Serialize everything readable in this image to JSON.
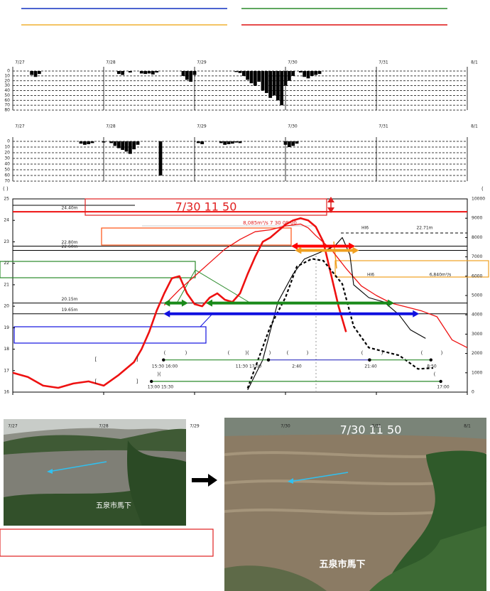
{
  "chart_data": [
    {
      "type": "bar",
      "inverted": true,
      "color": "#000000",
      "x": [
        5,
        6,
        7,
        28,
        29,
        31,
        34,
        35,
        36,
        37,
        38,
        45,
        46,
        47,
        48,
        59,
        60,
        61,
        62,
        63,
        64,
        65,
        66,
        67,
        68,
        69,
        70,
        71,
        72,
        73,
        74,
        76,
        77,
        78,
        79,
        80,
        81
      ],
      "values": [
        8,
        12,
        6,
        6,
        8,
        3,
        5,
        6,
        5,
        7,
        3,
        10,
        18,
        22,
        8,
        2,
        4,
        10,
        18,
        25,
        30,
        22,
        40,
        45,
        55,
        50,
        60,
        70,
        30,
        20,
        10,
        3,
        12,
        15,
        10,
        8,
        6
      ],
      "xlim": [
        0,
        120
      ],
      "xticks": [
        {
          "value": 0,
          "label": "7/27"
        },
        {
          "value": 24,
          "label": "7/28"
        },
        {
          "value": 48,
          "label": "7/29"
        },
        {
          "value": 72,
          "label": "7/30"
        },
        {
          "value": 96,
          "label": "7/31"
        },
        {
          "value": 120,
          "label": "8/1"
        }
      ],
      "ylim": [
        0,
        80
      ],
      "yticks": [
        0,
        10,
        20,
        30,
        40,
        50,
        60,
        70,
        80
      ],
      "grid": true
    },
    {
      "type": "bar",
      "inverted": true,
      "color": "#000000",
      "x": [
        18,
        19,
        20,
        21,
        24,
        26,
        27,
        28,
        29,
        30,
        31,
        32,
        33,
        39,
        49,
        50,
        55,
        56,
        57,
        58,
        59,
        60,
        72,
        73,
        74,
        75
      ],
      "values": [
        4,
        6,
        5,
        3,
        2,
        3,
        8,
        12,
        15,
        18,
        22,
        14,
        6,
        60,
        3,
        5,
        3,
        6,
        5,
        4,
        2,
        3,
        6,
        10,
        8,
        4
      ],
      "xlim": [
        0,
        120
      ],
      "xticks": [
        {
          "value": 0,
          "label": "7/27"
        },
        {
          "value": 24,
          "label": "7/28"
        },
        {
          "value": 48,
          "label": "7/29"
        },
        {
          "value": 72,
          "label": "7/30"
        },
        {
          "value": 96,
          "label": "7/31"
        },
        {
          "value": 120,
          "label": "8/1"
        }
      ],
      "ylim": [
        0,
        70
      ],
      "yticks": [
        0,
        10,
        20,
        30,
        40,
        50,
        60,
        70
      ],
      "grid": true
    },
    {
      "type": "line",
      "y_label": "( )",
      "y2_label": "(",
      "xlim": [
        0,
        120
      ],
      "xticks": [
        {
          "value": 0,
          "label": "7/27"
        },
        {
          "value": 24,
          "label": "7/28"
        },
        {
          "value": 48,
          "label": "7/29"
        },
        {
          "value": 72,
          "label": "7/30"
        },
        {
          "value": 96,
          "label": "7/31"
        },
        {
          "value": 120,
          "label": "8/1"
        }
      ],
      "ylim": [
        16,
        25
      ],
      "yticks": [
        16,
        17,
        18,
        19,
        20,
        21,
        22,
        23,
        24,
        25
      ],
      "y2lim": [
        0,
        10000
      ],
      "y2ticks": [
        0,
        1000,
        2000,
        3000,
        4000,
        5000,
        6000,
        7000,
        8000,
        9000,
        10000
      ],
      "series": [
        {
          "color": "#ee1111",
          "width": 2.6,
          "x": [
            0,
            4,
            8,
            12,
            16,
            20,
            24,
            28,
            32,
            34,
            36,
            38,
            40,
            42,
            44,
            46,
            48,
            50,
            52,
            54,
            56,
            58,
            60,
            62,
            64,
            66,
            68,
            70,
            72,
            74,
            76,
            78,
            80,
            82,
            84,
            86,
            88
          ],
          "values": [
            16.9,
            16.7,
            16.3,
            16.2,
            16.4,
            16.5,
            16.3,
            16.8,
            17.4,
            18.0,
            18.8,
            19.8,
            20.6,
            21.3,
            21.4,
            20.6,
            20.1,
            20.0,
            20.4,
            20.6,
            20.3,
            20.2,
            20.6,
            21.5,
            22.3,
            23.0,
            23.2,
            23.5,
            23.8,
            24.0,
            24.1,
            24.0,
            23.7,
            23.0,
            21.5,
            20.0,
            18.8
          ]
        },
        {
          "color": "#ee1111",
          "width": 1.3,
          "axis": "y2",
          "x": [
            40,
            44,
            48,
            52,
            56,
            60,
            64,
            68,
            72,
            76,
            78,
            80,
            84,
            88,
            92,
            96,
            100,
            104,
            108,
            112,
            116,
            120
          ],
          "values": [
            4500,
            5300,
            6000,
            6700,
            7400,
            7900,
            8300,
            8400,
            8600,
            8700,
            8500,
            8100,
            7400,
            6400,
            5500,
            5000,
            4600,
            4400,
            4200,
            3900,
            2700,
            2300
          ]
        },
        {
          "color": "#000000",
          "width": 1.1,
          "x": [
            62,
            66,
            70,
            74,
            77,
            81,
            85,
            87,
            89,
            90,
            94,
            98,
            102,
            105,
            109
          ],
          "values": [
            16.1,
            17.5,
            20.2,
            21.5,
            22.2,
            22.5,
            22.8,
            23.2,
            22.4,
            21.0,
            20.4,
            20.2,
            19.6,
            18.9,
            18.5
          ]
        },
        {
          "color": "#000000",
          "width": 2.2,
          "axis": "y2",
          "dashed": true,
          "x": [
            62,
            68,
            72,
            75,
            79,
            82,
            87,
            90,
            94,
            102,
            107,
            111
          ],
          "values": [
            200,
            3400,
            4900,
            6500,
            6900,
            6800,
            5600,
            3400,
            2300,
            1900,
            1200,
            1250
          ]
        }
      ],
      "hlines": [
        {
          "value": 24.4,
          "label": "24.40m",
          "color": "#ee1111"
        },
        {
          "value": 22.8,
          "label": "22.80m",
          "color": "#000000"
        },
        {
          "value": 22.6,
          "label": "22.60m",
          "color": "#000000"
        },
        {
          "value": 20.15,
          "label": "20.15m",
          "color": "#000000"
        },
        {
          "value": 19.65,
          "label": "19.65m",
          "color": "#000000"
        }
      ],
      "arrows": [
        {
          "x": [
            39.8,
            46.3
          ],
          "y": 20.15,
          "color": "#1a8a1a"
        },
        {
          "x": [
            51,
            100.7
          ],
          "y": 20.15,
          "color": "#1a8a1a"
        },
        {
          "x": [
            39.8,
            107.3
          ],
          "y": 19.65,
          "color": "#1010e0"
        },
        {
          "x": [
            73.5,
            90.4
          ],
          "y": 22.8,
          "color": "#ff0000"
        },
        {
          "x": [
            74.5,
            91.4
          ],
          "y": 22.6,
          "color": "#f0a020"
        }
      ],
      "periods": [
        {
          "x": [
            39.8,
            67.5
          ],
          "y": 17.5,
          "color": "#2a8a2a"
        },
        {
          "x": [
            67.5,
            94.2
          ],
          "y": 17.5,
          "color": "#3030c0"
        },
        {
          "x": [
            94.2,
            110.4
          ],
          "y": 17.5,
          "color": "#2a8a2a"
        },
        {
          "x": [
            36.6,
            113
          ],
          "y": 16.5,
          "color": "#2a8a2a"
        }
      ],
      "annotations": [
        "7/30 11 50",
        "8,085m³/s 7 30 08 00",
        "HI6",
        "22.71m",
        "HI6",
        "6,840m³/s",
        "15:30 16:00",
        "11:30 17:00",
        "2:40",
        "21:40",
        "8:50",
        "13:00 15:30",
        "17:00",
        "[",
        "]",
        "[",
        "]",
        "(",
        ")",
        "(",
        ")(",
        ")",
        "(",
        ")",
        "(",
        ")",
        "(",
        ")",
        ")(",
        "("
      ]
    }
  ],
  "photos": {
    "left": {
      "caption": "五泉市馬下"
    },
    "right": {
      "timestamp": "7/30 11 50",
      "caption": "五泉市馬下"
    }
  }
}
